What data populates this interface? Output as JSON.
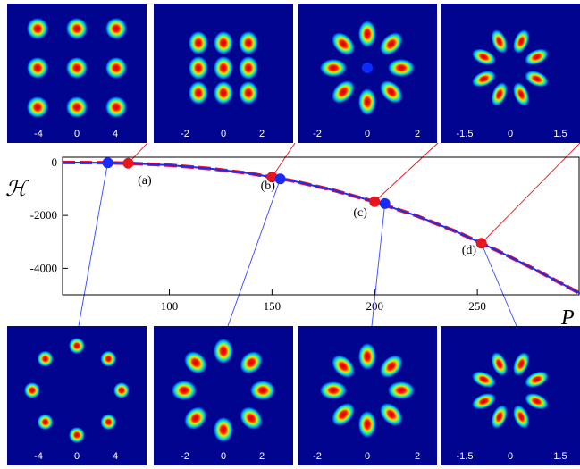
{
  "chart_data": {
    "type": "line",
    "xlabel": "P",
    "ylabel": "ℋ",
    "xlim": [
      48,
      300
    ],
    "ylim": [
      -5000,
      200
    ],
    "x_ticks": [
      100,
      150,
      200,
      250
    ],
    "y_ticks": [
      0,
      -2000,
      -4000
    ],
    "series": [
      {
        "style": "solid",
        "color": "#1a2aff",
        "x": [
          48,
          70,
          80,
          100,
          120,
          140,
          160,
          180,
          200,
          220,
          240,
          260,
          280,
          300
        ],
        "y": [
          0,
          -10,
          -30,
          -100,
          -230,
          -420,
          -690,
          -1050,
          -1480,
          -2000,
          -2620,
          -3340,
          -4120,
          -4950
        ]
      },
      {
        "style": "dashed",
        "color": "#e8141e",
        "x": [
          48,
          70,
          80,
          100,
          120,
          140,
          160,
          180,
          200,
          220,
          240,
          260,
          280,
          300
        ],
        "y": [
          0,
          -10,
          -30,
          -100,
          -230,
          -420,
          -690,
          -1050,
          -1480,
          -2000,
          -2620,
          -3340,
          -4120,
          -4950
        ]
      }
    ],
    "markers": [
      {
        "color": "#1a2aff",
        "x": 70,
        "y": -10
      },
      {
        "color": "#e8141e",
        "x": 80,
        "y": -30
      },
      {
        "color": "#e8141e",
        "x": 150,
        "y": -550
      },
      {
        "color": "#1a2aff",
        "x": 154,
        "y": -620
      },
      {
        "color": "#e8141e",
        "x": 200,
        "y": -1480
      },
      {
        "color": "#1a2aff",
        "x": 205,
        "y": -1550
      },
      {
        "color": "#e8141e",
        "x": 252,
        "y": -3050
      }
    ],
    "annotations": [
      {
        "text": "(a)",
        "x": 88,
        "y": -820
      },
      {
        "text": "(b)",
        "x": 148,
        "y": -1020
      },
      {
        "text": "(c)",
        "x": 193,
        "y": -2030
      },
      {
        "text": "(d)",
        "x": 246,
        "y": -3450
      }
    ],
    "grid": false
  },
  "panels": {
    "top": [
      {
        "id": "top-a",
        "ticks": [
          "-4",
          "0",
          "4"
        ],
        "pattern": "grid9",
        "scale": 0.82
      },
      {
        "id": "top-b",
        "ticks": [
          "-2",
          "0",
          "2"
        ],
        "pattern": "grid9tight",
        "scale": 0.95
      },
      {
        "id": "top-c",
        "ticks": [
          "-2",
          "0",
          "2"
        ],
        "pattern": "ring8center",
        "scale": 1.0
      },
      {
        "id": "top-d",
        "ticks": [
          "-1.5",
          "0",
          "1.5"
        ],
        "pattern": "ring8petal",
        "scale": 1.0
      }
    ],
    "bottom": [
      {
        "id": "bot-a",
        "ticks": [
          "-4",
          "0",
          "4"
        ],
        "pattern": "ring8wide",
        "scale": 0.82
      },
      {
        "id": "bot-b",
        "ticks": [
          "-2",
          "0",
          "2"
        ],
        "pattern": "ring8big",
        "scale": 1.0
      },
      {
        "id": "bot-c",
        "ticks": [
          "-2",
          "0",
          "2"
        ],
        "pattern": "ring8big2",
        "scale": 1.0
      },
      {
        "id": "bot-d",
        "ticks": [
          "-1.5",
          "0",
          "1.5"
        ],
        "pattern": "ring8petal",
        "scale": 1.0
      }
    ]
  },
  "colors": {
    "panel_bg": "#01048f",
    "blue_curve": "#1a2aff",
    "red_curve": "#e8141e",
    "connector_blue": "#3046ff",
    "connector_red": "#e8141e"
  }
}
